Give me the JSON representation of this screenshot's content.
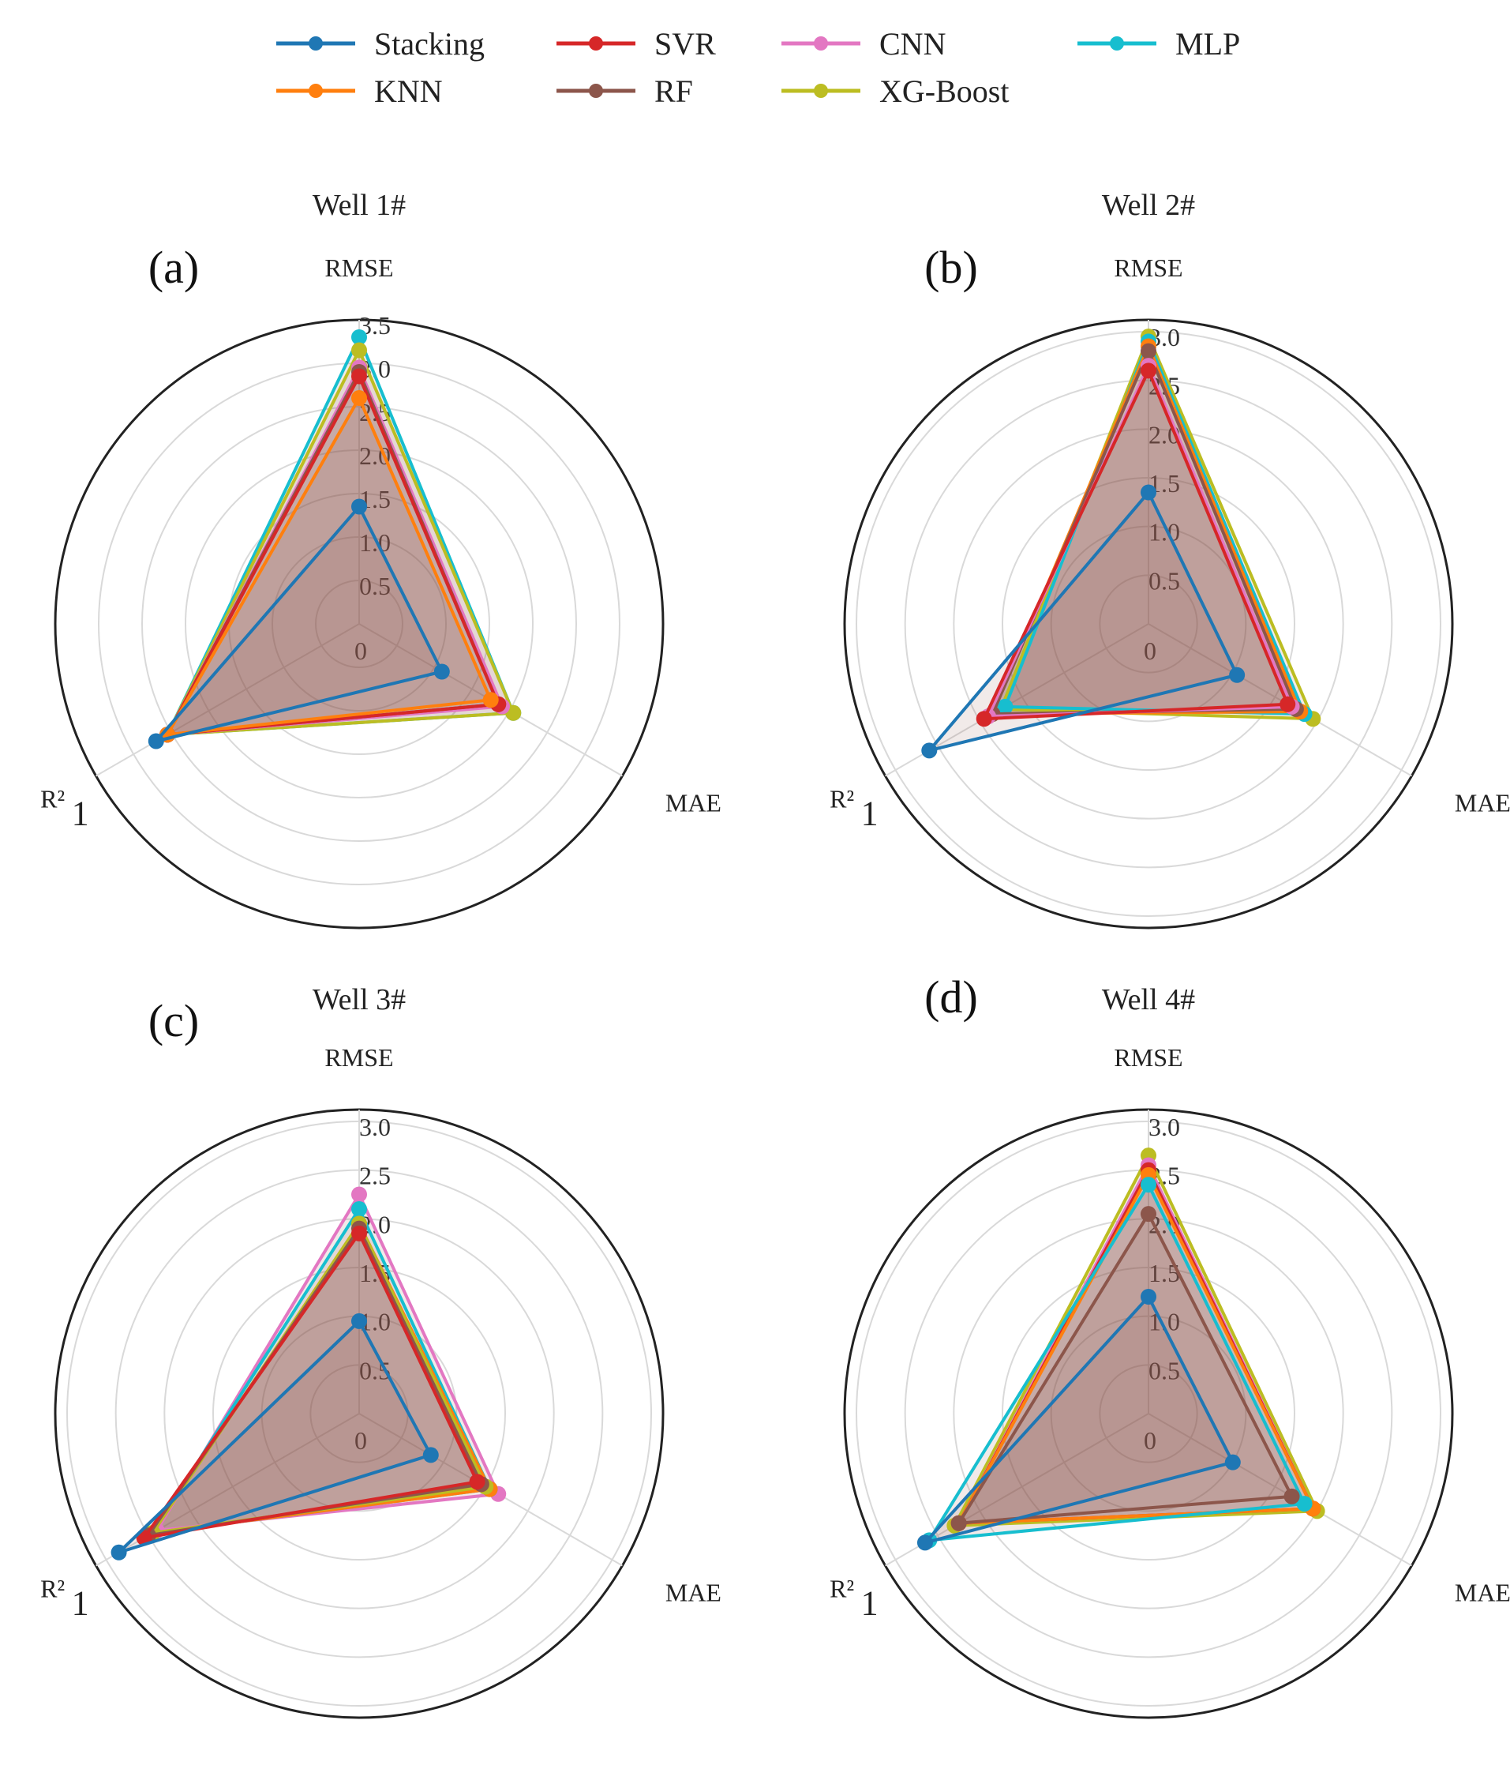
{
  "legend": {
    "entries": [
      {
        "name": "Stacking",
        "color": "#1f77b4"
      },
      {
        "name": "SVR",
        "color": "#d62728"
      },
      {
        "name": "CNN",
        "color": "#e377c2"
      },
      {
        "name": "MLP",
        "color": "#17becf"
      },
      {
        "name": "KNN",
        "color": "#ff7f0e"
      },
      {
        "name": "RF",
        "color": "#8c564b"
      },
      {
        "name": "XG-Boost",
        "color": "#bcbd22"
      }
    ]
  },
  "chart_data": [
    {
      "type": "radar",
      "panel_label": "(a)",
      "title": "Well 1#",
      "axes": [
        "RMSE",
        "MAE",
        "R²"
      ],
      "r_axis_max": 3.5,
      "r_ticks": [
        "0",
        "0.5",
        "1.0",
        "1.5",
        "2.0",
        "2.5",
        "3.0",
        "3.5"
      ],
      "r2_tick": "1",
      "series": [
        {
          "name": "Stacking",
          "values": [
            1.35,
            1.1,
            2.7
          ]
        },
        {
          "name": "KNN",
          "values": [
            2.6,
            1.75,
            2.55
          ]
        },
        {
          "name": "SVR",
          "values": [
            2.85,
            1.85,
            2.55
          ]
        },
        {
          "name": "RF",
          "values": [
            2.9,
            1.85,
            2.55
          ]
        },
        {
          "name": "CNN",
          "values": [
            2.95,
            1.9,
            2.55
          ]
        },
        {
          "name": "XG-Boost",
          "values": [
            3.15,
            2.05,
            2.55
          ]
        },
        {
          "name": "MLP",
          "values": [
            3.3,
            2.05,
            2.55
          ]
        }
      ]
    },
    {
      "type": "radar",
      "panel_label": "(b)",
      "title": "Well 2#",
      "axes": [
        "RMSE",
        "MAE",
        "R²"
      ],
      "r_axis_max": 3.0,
      "r_ticks": [
        "0",
        "0.5",
        "1.0",
        "1.5",
        "2.0",
        "2.5",
        "3.0"
      ],
      "r2_tick": "1",
      "series": [
        {
          "name": "Stacking",
          "values": [
            1.35,
            1.05,
            2.6
          ]
        },
        {
          "name": "SVR",
          "values": [
            2.6,
            1.65,
            1.95
          ]
        },
        {
          "name": "CNN",
          "values": [
            2.65,
            1.7,
            1.9
          ]
        },
        {
          "name": "RF",
          "values": [
            2.8,
            1.75,
            1.85
          ]
        },
        {
          "name": "KNN",
          "values": [
            2.85,
            1.8,
            1.85
          ]
        },
        {
          "name": "MLP",
          "values": [
            2.9,
            1.85,
            1.7
          ]
        },
        {
          "name": "XG-Boost",
          "values": [
            2.95,
            1.95,
            1.75
          ]
        }
      ]
    },
    {
      "type": "radar",
      "panel_label": "(c)",
      "title": "Well 3#",
      "axes": [
        "RMSE",
        "MAE",
        "R²"
      ],
      "r_axis_max": 3.0,
      "r_ticks": [
        "0",
        "0.5",
        "1.0",
        "1.5",
        "2.0",
        "2.5",
        "3.0"
      ],
      "r2_tick": "1",
      "series": [
        {
          "name": "Stacking",
          "values": [
            0.95,
            0.85,
            2.85
          ]
        },
        {
          "name": "SVR",
          "values": [
            1.85,
            1.4,
            2.55
          ]
        },
        {
          "name": "RF",
          "values": [
            1.9,
            1.45,
            2.5
          ]
        },
        {
          "name": "XG-Boost",
          "values": [
            1.95,
            1.5,
            2.45
          ]
        },
        {
          "name": "KNN",
          "values": [
            1.95,
            1.55,
            2.45
          ]
        },
        {
          "name": "MLP",
          "values": [
            2.1,
            1.55,
            2.45
          ]
        },
        {
          "name": "CNN",
          "values": [
            2.25,
            1.65,
            2.4
          ]
        }
      ]
    },
    {
      "type": "radar",
      "panel_label": "(d)",
      "title": "Well 4#",
      "axes": [
        "RMSE",
        "MAE",
        "R²"
      ],
      "r_axis_max": 3.0,
      "r_ticks": [
        "0",
        "0.5",
        "1.0",
        "1.5",
        "2.0",
        "2.5",
        "3.0"
      ],
      "r2_tick": "1",
      "series": [
        {
          "name": "Stacking",
          "values": [
            1.2,
            1.0,
            2.65
          ]
        },
        {
          "name": "RF",
          "values": [
            2.05,
            1.7,
            2.25
          ]
        },
        {
          "name": "MLP",
          "values": [
            2.35,
            1.85,
            2.6
          ]
        },
        {
          "name": "KNN",
          "values": [
            2.45,
            1.95,
            2.25
          ]
        },
        {
          "name": "SVR",
          "values": [
            2.5,
            1.95,
            2.25
          ]
        },
        {
          "name": "CNN",
          "values": [
            2.55,
            1.95,
            2.25
          ]
        },
        {
          "name": "XG-Boost",
          "values": [
            2.65,
            2.0,
            2.3
          ]
        }
      ]
    }
  ]
}
